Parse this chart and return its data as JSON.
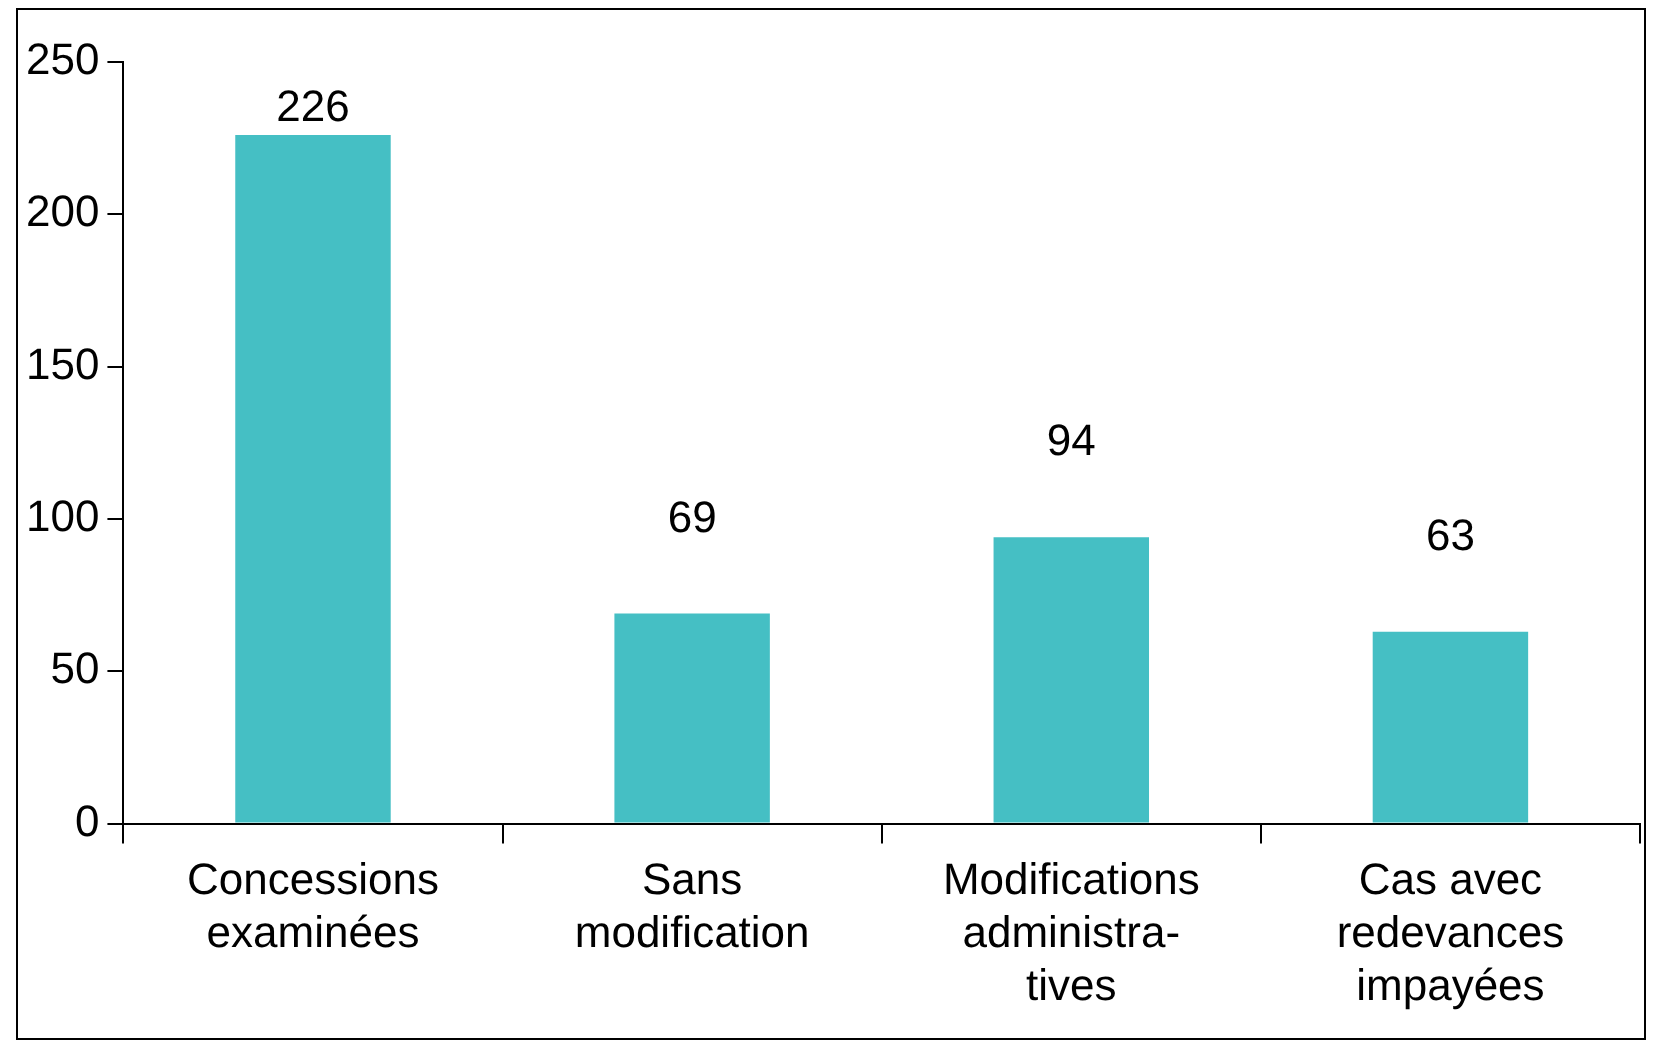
{
  "chart_data": {
    "type": "bar",
    "categories": [
      "Concessions\nexaminées",
      "Sans\nmodification",
      "Modifications\nadministra-\ntives",
      "Cas avec\nredevances\nimpayées"
    ],
    "values": [
      226,
      69,
      94,
      63
    ],
    "color": "#45bfc4",
    "ylim": [
      0,
      250
    ],
    "yticks": [
      0,
      50,
      100,
      150,
      200,
      250
    ],
    "grid": false,
    "data_labels": true,
    "legend": false
  }
}
